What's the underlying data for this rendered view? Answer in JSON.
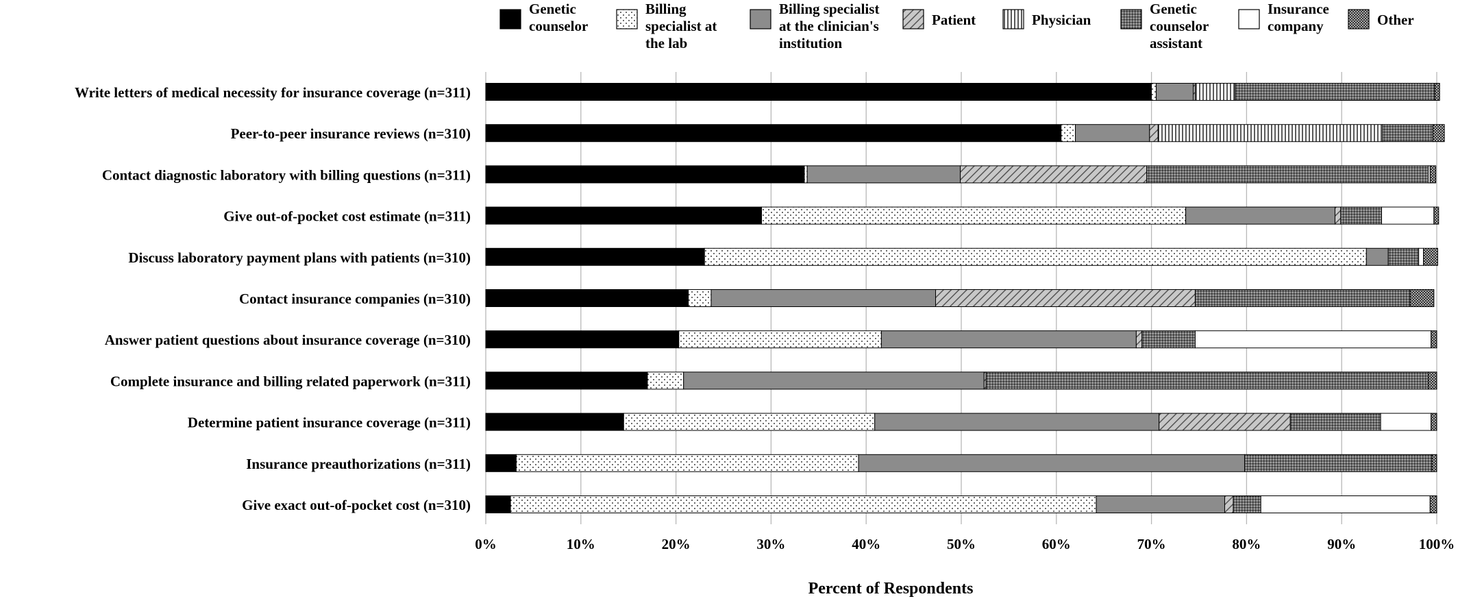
{
  "chart_data": {
    "type": "bar",
    "orientation": "horizontal",
    "stacked": "percent",
    "xlabel": "Percent of Respondents",
    "ylabel": "",
    "xlim": [
      0,
      100
    ],
    "xticks": [
      "0%",
      "10%",
      "20%",
      "30%",
      "40%",
      "50%",
      "60%",
      "70%",
      "80%",
      "90%",
      "100%"
    ],
    "grid": "vertical",
    "legend_position": "top",
    "categories": [
      "Write letters of medical necessity for insurance coverage (n=311)",
      "Peer-to-peer insurance reviews (n=310)",
      "Contact diagnostic laboratory with billing questions (n=311)",
      "Give out-of-pocket cost estimate (n=311)",
      "Discuss laboratory payment plans with patients (n=310)",
      "Contact insurance companies (n=310)",
      "Answer patient questions about insurance coverage (n=310)",
      "Complete insurance and billing related  paperwork (n=311)",
      "Determine patient insurance coverage (n=311)",
      "Insurance preauthorizations (n=311)",
      "Give exact out-of-pocket cost (n=310)"
    ],
    "series": [
      {
        "name": "Genetic counselor",
        "pattern": "solid-black",
        "values": [
          70.0,
          60.5,
          33.5,
          29.0,
          23.0,
          21.3,
          20.3,
          17.0,
          14.5,
          3.2,
          2.6
        ]
      },
      {
        "name": "Billing specialist at the lab",
        "pattern": "sparse-dots",
        "values": [
          0.5,
          1.5,
          0.3,
          44.6,
          69.6,
          2.4,
          21.3,
          3.8,
          26.4,
          36.0,
          61.6
        ]
      },
      {
        "name": "Billing specialist at the clinician's institution",
        "pattern": "solid-gray",
        "values": [
          3.9,
          7.8,
          16.1,
          15.7,
          2.3,
          23.6,
          26.8,
          31.6,
          29.9,
          40.6,
          13.5
        ]
      },
      {
        "name": "Patient",
        "pattern": "diagonal-hatch",
        "values": [
          0.2,
          0.9,
          19.6,
          0.6,
          0.0,
          27.3,
          0.6,
          0.2,
          13.8,
          0.0,
          0.9
        ]
      },
      {
        "name": "Physician",
        "pattern": "vertical-lines",
        "values": [
          4.2,
          23.6,
          0.0,
          0.0,
          0.0,
          0.0,
          0.0,
          0.0,
          0.0,
          0.0,
          0.0
        ]
      },
      {
        "name": "Genetic counselor assistant",
        "pattern": "dense-dots",
        "values": [
          21.0,
          5.3,
          29.6,
          4.3,
          3.2,
          22.6,
          5.6,
          46.5,
          9.5,
          19.7,
          2.9
        ]
      },
      {
        "name": "Insurance company",
        "pattern": "white",
        "values": [
          0.0,
          0.0,
          0.2,
          5.5,
          0.5,
          0.0,
          24.8,
          0.0,
          5.3,
          0.0,
          17.8
        ]
      },
      {
        "name": "Other",
        "pattern": "dark-dots",
        "values": [
          0.5,
          1.2,
          0.6,
          0.5,
          1.5,
          2.5,
          0.6,
          0.9,
          0.6,
          0.5,
          0.7
        ]
      }
    ],
    "legend_labels": [
      [
        "Genetic",
        "counselor"
      ],
      [
        "Billing",
        "specialist at",
        "the lab"
      ],
      [
        "Billing specialist",
        "at the clinician's",
        "institution"
      ],
      [
        "Patient"
      ],
      [
        "Physician"
      ],
      [
        "Genetic",
        "counselor",
        "assistant"
      ],
      [
        "Insurance",
        "company"
      ],
      [
        "Other"
      ]
    ]
  }
}
